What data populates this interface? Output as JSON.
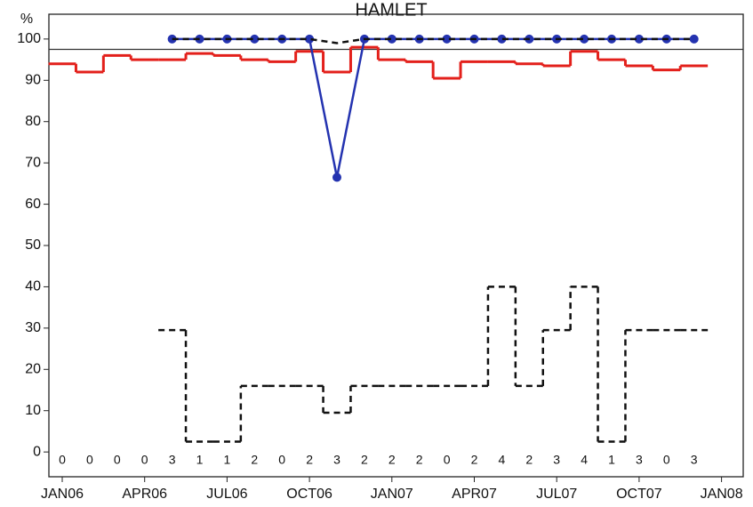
{
  "chart_data": {
    "type": "line",
    "title": "HAMLET",
    "ylabel": "%",
    "categories": [
      "JAN06",
      null,
      null,
      "APR06",
      null,
      null,
      "JUL06",
      null,
      null,
      "OCT06",
      null,
      null,
      "JAN07",
      null,
      null,
      "APR07",
      null,
      null,
      "JUL07",
      null,
      null,
      "OCT07",
      null,
      null,
      "JAN08"
    ],
    "ylim": [
      -6,
      106
    ],
    "yticks": [
      0,
      10,
      20,
      30,
      40,
      50,
      60,
      70,
      80,
      90,
      100
    ],
    "reference_line": 97.5,
    "counts": [
      0,
      0,
      0,
      0,
      3,
      1,
      1,
      2,
      0,
      2,
      3,
      2,
      2,
      2,
      0,
      2,
      4,
      2,
      3,
      4,
      1,
      3,
      0,
      3,
      null
    ],
    "series": [
      {
        "color": "#e3201b",
        "style": "step",
        "values": [
          94,
          92,
          96,
          95,
          95,
          96.5,
          96,
          95,
          94.5,
          97,
          92,
          98,
          95,
          94.5,
          90.5,
          94.5,
          94.5,
          94,
          93.5,
          97,
          95,
          93.5,
          92.5,
          93.5,
          null
        ]
      },
      {
        "color": "#2433b0",
        "style": "line-markers",
        "values": [
          null,
          null,
          null,
          null,
          100,
          100,
          100,
          100,
          100,
          100,
          66.5,
          100,
          100,
          100,
          100,
          100,
          100,
          100,
          100,
          100,
          100,
          100,
          100,
          100,
          null
        ]
      },
      {
        "color": "#111111",
        "style": "dashed",
        "values": [
          null,
          null,
          null,
          null,
          100,
          100,
          100,
          100,
          100,
          100,
          99,
          100,
          100,
          100,
          100,
          100,
          100,
          100,
          100,
          100,
          100,
          100,
          100,
          100,
          null
        ]
      },
      {
        "color": "#111111",
        "style": "dashed-step",
        "values": [
          null,
          null,
          null,
          null,
          29.5,
          2.5,
          2.5,
          16,
          16,
          16,
          9.5,
          16,
          16,
          16,
          16,
          16,
          40,
          16,
          29.5,
          40,
          2.5,
          29.5,
          29.5,
          29.5,
          null
        ]
      }
    ]
  }
}
